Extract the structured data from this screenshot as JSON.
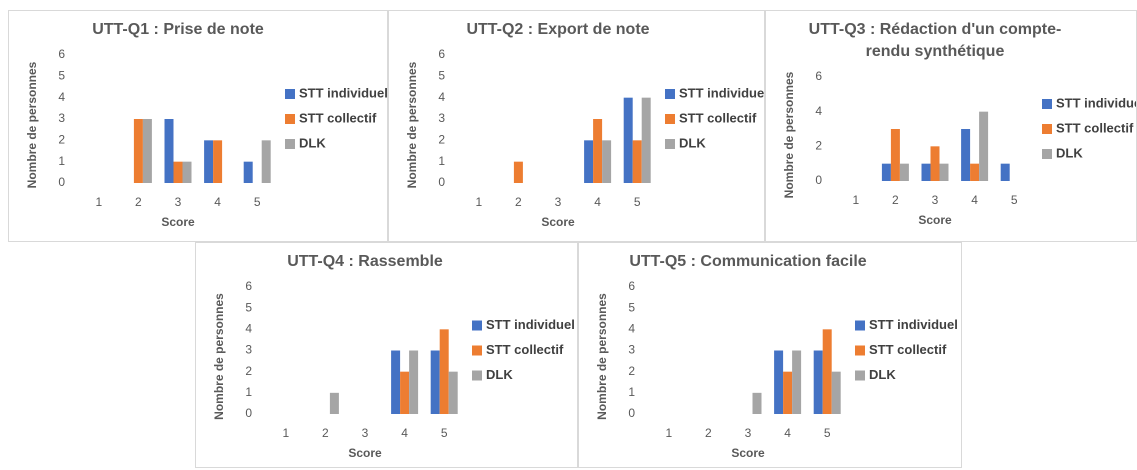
{
  "chart_data": [
    {
      "type": "bar",
      "title": "UTT-Q1 : Prise de note",
      "x_label": "Score",
      "y_label": "Nombre de personnes",
      "categories": [
        "1",
        "2",
        "3",
        "4",
        "5"
      ],
      "series": [
        {
          "name": "STT individuel",
          "color": "#4472c4",
          "values": [
            0,
            0,
            3,
            2,
            1
          ]
        },
        {
          "name": "STT collectif",
          "color": "#ed7d31",
          "values": [
            0,
            3,
            1,
            2,
            0
          ]
        },
        {
          "name": "DLK",
          "color": "#a5a5a5",
          "values": [
            0,
            3,
            1,
            0,
            2
          ]
        }
      ],
      "ylim": [
        0,
        6
      ],
      "yticks": [
        0,
        1,
        2,
        3,
        4,
        5,
        6
      ],
      "grid": false,
      "legend": "right"
    },
    {
      "type": "bar",
      "title": "UTT-Q2 : Export de note",
      "x_label": "Score",
      "y_label": "Nombre de personnes",
      "categories": [
        "1",
        "2",
        "3",
        "4",
        "5"
      ],
      "series": [
        {
          "name": "STT individuel",
          "color": "#4472c4",
          "values": [
            0,
            0,
            0,
            2,
            4
          ]
        },
        {
          "name": "STT collectif",
          "color": "#ed7d31",
          "values": [
            0,
            1,
            0,
            3,
            2
          ]
        },
        {
          "name": "DLK",
          "color": "#a5a5a5",
          "values": [
            0,
            0,
            0,
            2,
            4
          ]
        }
      ],
      "ylim": [
        0,
        6
      ],
      "yticks": [
        0,
        1,
        2,
        3,
        4,
        5,
        6
      ],
      "grid": false,
      "legend": "right"
    },
    {
      "type": "bar",
      "title": "UTT-Q3 : Rédaction d'un compte-rendu synthétique",
      "x_label": "Score",
      "y_label": "Nombre de personnes",
      "categories": [
        "1",
        "2",
        "3",
        "4",
        "5"
      ],
      "series": [
        {
          "name": "STT individuel",
          "color": "#4472c4",
          "values": [
            0,
            1,
            1,
            3,
            1
          ]
        },
        {
          "name": "STT collectif",
          "color": "#ed7d31",
          "values": [
            0,
            3,
            2,
            1,
            0
          ]
        },
        {
          "name": "DLK",
          "color": "#a5a5a5",
          "values": [
            0,
            1,
            1,
            4,
            0
          ]
        }
      ],
      "ylim": [
        0,
        6
      ],
      "yticks": [
        0,
        2,
        4,
        6
      ],
      "grid": false,
      "legend": "right"
    },
    {
      "type": "bar",
      "title": "UTT-Q4 : Rassemble",
      "x_label": "Score",
      "y_label": "Nombre de personnes",
      "categories": [
        "1",
        "2",
        "3",
        "4",
        "5"
      ],
      "series": [
        {
          "name": "STT individuel",
          "color": "#4472c4",
          "values": [
            0,
            0,
            0,
            3,
            3
          ]
        },
        {
          "name": "STT collectif",
          "color": "#ed7d31",
          "values": [
            0,
            0,
            0,
            2,
            4
          ]
        },
        {
          "name": "DLK",
          "color": "#a5a5a5",
          "values": [
            0,
            1,
            0,
            3,
            2
          ]
        }
      ],
      "ylim": [
        0,
        6
      ],
      "yticks": [
        0,
        1,
        2,
        3,
        4,
        5,
        6
      ],
      "grid": false,
      "legend": "right"
    },
    {
      "type": "bar",
      "title": "UTT-Q5 : Communication facile",
      "x_label": "Score",
      "y_label": "Nombre de personnes",
      "categories": [
        "1",
        "2",
        "3",
        "4",
        "5"
      ],
      "series": [
        {
          "name": "STT individuel",
          "color": "#4472c4",
          "values": [
            0,
            0,
            0,
            3,
            3
          ]
        },
        {
          "name": "STT collectif",
          "color": "#ed7d31",
          "values": [
            0,
            0,
            0,
            2,
            4
          ]
        },
        {
          "name": "DLK",
          "color": "#a5a5a5",
          "values": [
            0,
            0,
            1,
            3,
            2
          ]
        }
      ],
      "ylim": [
        0,
        6
      ],
      "yticks": [
        0,
        1,
        2,
        3,
        4,
        5,
        6
      ],
      "grid": false,
      "legend": "right"
    }
  ]
}
